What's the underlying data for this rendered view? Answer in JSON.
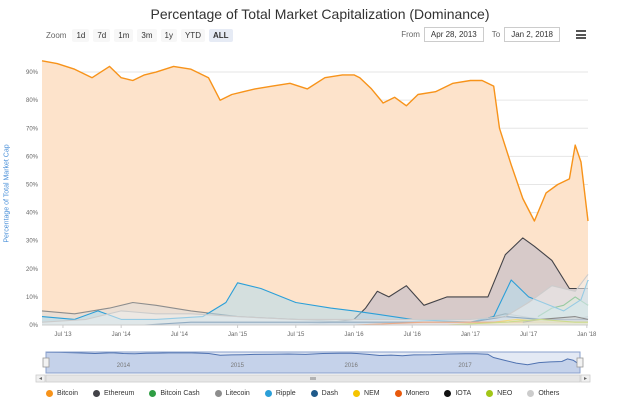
{
  "title": "Percentage of Total Market Capitalization (Dominance)",
  "zoom": {
    "label": "Zoom",
    "buttons": [
      "1d",
      "7d",
      "1m",
      "3m",
      "1y",
      "YTD",
      "ALL"
    ],
    "active": "ALL"
  },
  "range": {
    "from_label": "From",
    "from_value": "Apr 28, 2013",
    "to_label": "To",
    "to_value": "Jan 2, 2018"
  },
  "navigator": {
    "labels": [
      "2014",
      "2015",
      "2016",
      "2017"
    ]
  },
  "chart_data": {
    "type": "area",
    "title": "Percentage of Total Market Capitalization (Dominance)",
    "ylabel": "Percentage of Total Market Cap",
    "xlabel": "",
    "ylim": [
      0,
      95
    ],
    "ytick_labels": [
      "0%",
      "10%",
      "20%",
      "30%",
      "40%",
      "50%",
      "60%",
      "70%",
      "80%",
      "90%"
    ],
    "xtick_labels": [
      "Jul '13",
      "Jan '14",
      "Jul '14",
      "Jan '15",
      "Jul '15",
      "Jan '16",
      "Jul '16",
      "Jan '17",
      "Jul '17",
      "Jan '18"
    ],
    "xrange": [
      2013.32,
      2018.01
    ],
    "grid": true,
    "legend_position": "bottom",
    "series": [
      {
        "name": "Bitcoin",
        "color": "#f7931a",
        "fill": "#fde3cb",
        "x": [
          2013.32,
          2013.45,
          2013.6,
          2013.75,
          2013.9,
          2014.0,
          2014.1,
          2014.2,
          2014.3,
          2014.45,
          2014.6,
          2014.75,
          2014.85,
          2014.95,
          2015.05,
          2015.15,
          2015.3,
          2015.45,
          2015.6,
          2015.75,
          2015.9,
          2016.0,
          2016.05,
          2016.15,
          2016.25,
          2016.35,
          2016.45,
          2016.55,
          2016.7,
          2016.85,
          2017.0,
          2017.1,
          2017.2,
          2017.25,
          2017.35,
          2017.45,
          2017.55,
          2017.65,
          2017.75,
          2017.85,
          2017.9,
          2017.95,
          2018.01
        ],
        "values": [
          94,
          93,
          91,
          88,
          92,
          88,
          87,
          89,
          90,
          92,
          91,
          88,
          80,
          82,
          83,
          84,
          85,
          86,
          84,
          88,
          89,
          89,
          88,
          84,
          79,
          81,
          78,
          82,
          83,
          86,
          87,
          87,
          85,
          70,
          57,
          45,
          37,
          47,
          50,
          52,
          64,
          58,
          37
        ]
      },
      {
        "name": "Ethereum",
        "color": "#434348",
        "fill": "#b8b6c9",
        "x": [
          2015.6,
          2015.8,
          2016.0,
          2016.1,
          2016.2,
          2016.3,
          2016.45,
          2016.6,
          2016.8,
          2017.0,
          2017.15,
          2017.3,
          2017.45,
          2017.55,
          2017.7,
          2017.85,
          2018.01
        ],
        "values": [
          0,
          1,
          2,
          6,
          12,
          10,
          14,
          7,
          10,
          10,
          10,
          25,
          31,
          28,
          23,
          13,
          13
        ]
      },
      {
        "name": "Bitcoin Cash",
        "color": "#2f9e44",
        "fill": "#c8e6c9",
        "x": [
          2017.58,
          2017.7,
          2017.8,
          2017.9,
          2018.01
        ],
        "values": [
          3,
          6,
          7,
          10,
          7
        ]
      },
      {
        "name": "Litecoin",
        "color": "#8d8d8d",
        "fill": "#dddddd",
        "x": [
          2013.32,
          2013.6,
          2013.9,
          2014.1,
          2014.3,
          2014.6,
          2015.0,
          2015.5,
          2016.0,
          2016.5,
          2017.0,
          2017.3,
          2017.6,
          2017.9,
          2018.01
        ],
        "values": [
          5,
          4,
          6,
          8,
          7,
          5,
          3,
          2,
          1,
          1,
          1,
          4,
          2,
          2,
          3
        ]
      },
      {
        "name": "Ripple",
        "color": "#2b9fd8",
        "fill": "#b3dcef",
        "x": [
          2013.32,
          2013.6,
          2013.8,
          2014.0,
          2014.3,
          2014.7,
          2014.9,
          2015.0,
          2015.2,
          2015.5,
          2015.8,
          2016.0,
          2016.5,
          2017.0,
          2017.2,
          2017.35,
          2017.5,
          2017.8,
          2017.95,
          2018.01
        ],
        "values": [
          3,
          2,
          5,
          2,
          2,
          3,
          8,
          15,
          13,
          8,
          6,
          5,
          2,
          1,
          3,
          16,
          10,
          5,
          9,
          16
        ]
      },
      {
        "name": "Dash",
        "color": "#1f5a8a",
        "fill": "#a9c3dd",
        "x": [
          2014.2,
          2014.6,
          2015.0,
          2015.6,
          2016.0,
          2016.5,
          2017.0,
          2017.3,
          2017.6,
          2018.01
        ],
        "values": [
          0,
          1,
          1,
          1,
          1,
          1,
          1,
          3,
          2,
          2
        ]
      },
      {
        "name": "NEM",
        "color": "#f5c400",
        "fill": "#fbeea6",
        "x": [
          2015.3,
          2016.0,
          2016.8,
          2017.2,
          2017.4,
          2017.7,
          2018.01
        ],
        "values": [
          0,
          0,
          0,
          1,
          2,
          1,
          1
        ]
      },
      {
        "name": "Monero",
        "color": "#e8590c",
        "fill": "#f8cbb0",
        "x": [
          2014.4,
          2015.0,
          2016.0,
          2016.6,
          2017.0,
          2017.5,
          2018.01
        ],
        "values": [
          0,
          0,
          0,
          1,
          1,
          1,
          1
        ]
      },
      {
        "name": "IOTA",
        "color": "#111111",
        "fill": "#bbbbbb",
        "x": [
          2017.45,
          2017.6,
          2017.9,
          2018.01
        ],
        "values": [
          1,
          2,
          3,
          2
        ]
      },
      {
        "name": "NEO",
        "color": "#a2c617",
        "fill": "#e2efb0",
        "x": [
          2016.8,
          2017.3,
          2017.6,
          2017.9,
          2018.01
        ],
        "values": [
          0,
          1,
          2,
          1,
          1
        ]
      },
      {
        "name": "Others",
        "color": "#cccccc",
        "fill": "#eeeeee",
        "x": [
          2013.32,
          2013.7,
          2014.0,
          2014.3,
          2014.6,
          2015.0,
          2015.5,
          2016.0,
          2016.5,
          2017.0,
          2017.3,
          2017.5,
          2017.7,
          2017.9,
          2018.01
        ],
        "values": [
          1,
          2,
          5,
          4,
          4,
          3,
          2,
          2,
          2,
          2,
          3,
          8,
          14,
          12,
          18
        ]
      }
    ]
  }
}
